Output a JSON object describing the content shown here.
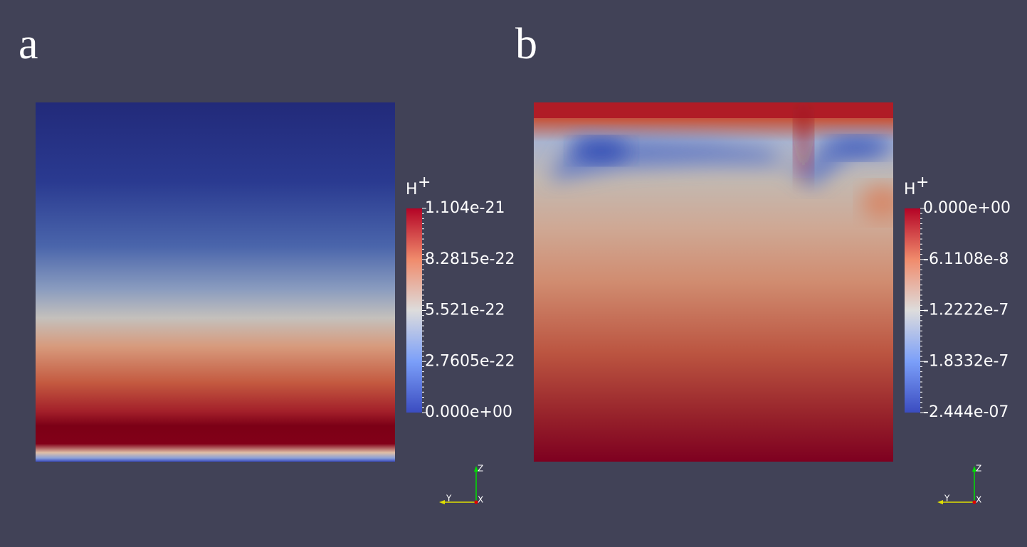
{
  "panels": [
    {
      "label": "a",
      "legend": {
        "title": "H",
        "title_sup": "+",
        "labels": [
          "1.104e-21",
          "8.2815e-22",
          "5.521e-22",
          "2.7605e-22",
          "0.000e+00"
        ]
      },
      "axes": {
        "z": "Z",
        "y": "Y",
        "x": "X"
      }
    },
    {
      "label": "b",
      "legend": {
        "title": "H",
        "title_sup": "+",
        "labels": [
          "0.000e+00",
          "-6.1108e-8",
          "-1.2222e-7",
          "-1.8332e-7",
          "-2.444e-07"
        ]
      },
      "axes": {
        "z": "Z",
        "y": "Y",
        "x": "X"
      }
    }
  ]
}
